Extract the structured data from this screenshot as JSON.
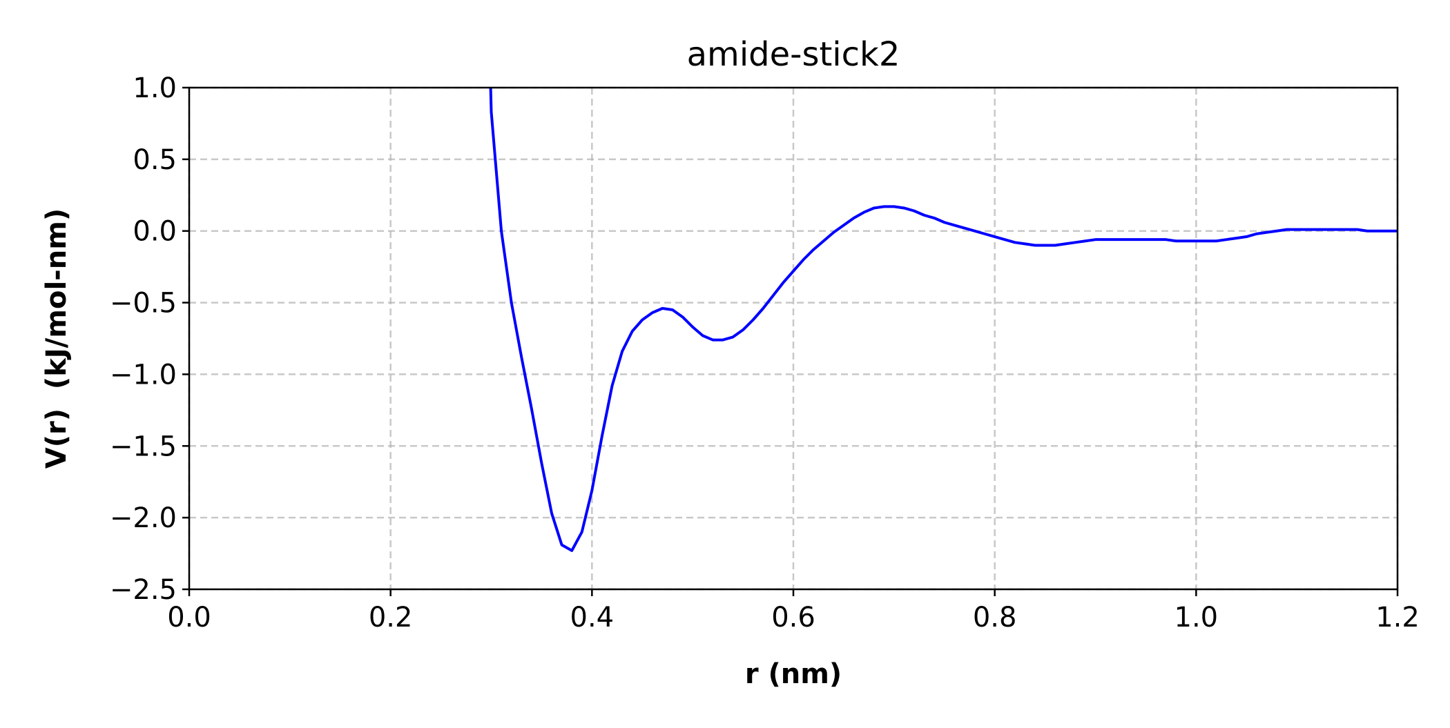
{
  "chart_data": {
    "type": "line",
    "title": "amide-stick2",
    "xlabel": "r (nm)",
    "ylabel": "V(r)  (kJ/mol-nm)",
    "xlim": [
      0.0,
      1.2
    ],
    "ylim": [
      -2.5,
      1.0
    ],
    "xticks": [
      0.0,
      0.2,
      0.4,
      0.6,
      0.8,
      1.0,
      1.2
    ],
    "yticks": [
      1.0,
      0.5,
      0.0,
      -0.5,
      -1.0,
      -1.5,
      -2.0,
      -2.5
    ],
    "xtick_labels": [
      "0.0",
      "0.2",
      "0.4",
      "0.6",
      "0.8",
      "1.0",
      "1.2"
    ],
    "ytick_labels": [
      "1.0",
      "0.5",
      "0.0",
      "−0.5",
      "−1.0",
      "−1.5",
      "−2.0",
      "−2.5"
    ],
    "grid": true,
    "grid_style": "dashed",
    "series": [
      {
        "color": "#0000ff",
        "x": [
          0.29,
          0.3,
          0.31,
          0.32,
          0.33,
          0.34,
          0.35,
          0.36,
          0.37,
          0.38,
          0.39,
          0.4,
          0.41,
          0.42,
          0.43,
          0.44,
          0.45,
          0.46,
          0.47,
          0.48,
          0.49,
          0.5,
          0.51,
          0.52,
          0.53,
          0.54,
          0.55,
          0.56,
          0.57,
          0.58,
          0.59,
          0.6,
          0.61,
          0.62,
          0.63,
          0.64,
          0.65,
          0.66,
          0.67,
          0.68,
          0.69,
          0.7,
          0.71,
          0.72,
          0.73,
          0.74,
          0.75,
          0.76,
          0.77,
          0.78,
          0.79,
          0.8,
          0.81,
          0.82,
          0.83,
          0.84,
          0.85,
          0.86,
          0.87,
          0.88,
          0.89,
          0.9,
          0.91,
          0.92,
          0.93,
          0.94,
          0.95,
          0.96,
          0.97,
          0.98,
          0.99,
          1.0,
          1.01,
          1.02,
          1.03,
          1.04,
          1.05,
          1.06,
          1.07,
          1.08,
          1.09,
          1.1,
          1.11,
          1.12,
          1.13,
          1.14,
          1.15,
          1.16,
          1.17,
          1.18,
          1.19,
          1.2
        ],
        "y": [
          3.5,
          0.83,
          0.0,
          -0.5,
          -0.88,
          -1.24,
          -1.62,
          -1.97,
          -2.19,
          -2.23,
          -2.1,
          -1.81,
          -1.43,
          -1.08,
          -0.84,
          -0.7,
          -0.62,
          -0.57,
          -0.54,
          -0.55,
          -0.6,
          -0.67,
          -0.73,
          -0.76,
          -0.76,
          -0.74,
          -0.69,
          -0.62,
          -0.54,
          -0.45,
          -0.36,
          -0.28,
          -0.2,
          -0.13,
          -0.07,
          -0.01,
          0.04,
          0.09,
          0.13,
          0.16,
          0.17,
          0.17,
          0.16,
          0.14,
          0.11,
          0.09,
          0.06,
          0.04,
          0.02,
          0.0,
          -0.02,
          -0.04,
          -0.06,
          -0.08,
          -0.09,
          -0.1,
          -0.1,
          -0.1,
          -0.09,
          -0.08,
          -0.07,
          -0.06,
          -0.06,
          -0.06,
          -0.06,
          -0.06,
          -0.06,
          -0.06,
          -0.06,
          -0.07,
          -0.07,
          -0.07,
          -0.07,
          -0.07,
          -0.06,
          -0.05,
          -0.04,
          -0.02,
          -0.01,
          0.0,
          0.01,
          0.01,
          0.01,
          0.01,
          0.01,
          0.01,
          0.01,
          0.01,
          0.0,
          0.0,
          0.0,
          0.0
        ]
      }
    ]
  }
}
